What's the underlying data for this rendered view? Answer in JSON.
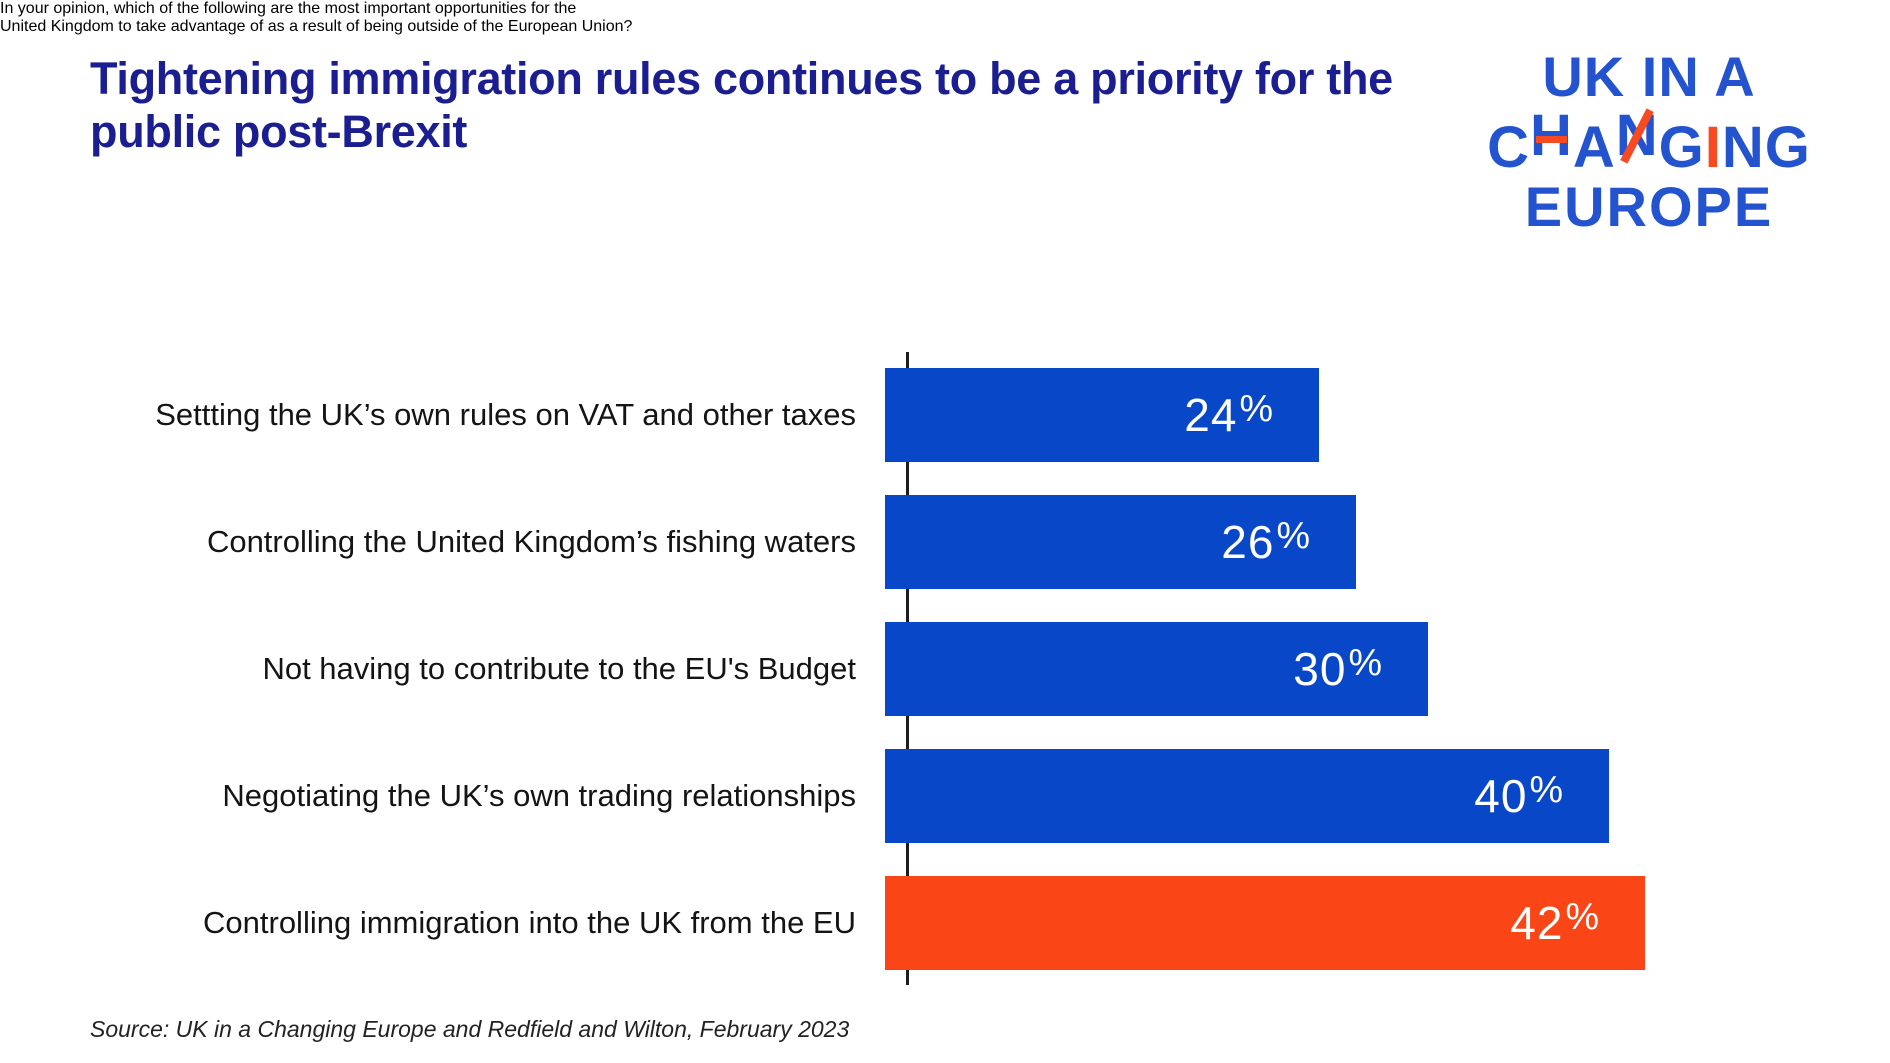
{
  "colors": {
    "title_navy": "#1a1e90",
    "logo_blue": "#2353cf",
    "logo_orange": "#f84a21",
    "axis_black": "#1d1d1d"
  },
  "header": {
    "title_lines": [
      "Tightening immigration rules continues to be a priority for the",
      "public post-Brexit"
    ],
    "subtitle_lines": [
      "In your opinion, which of the following are the most important opportunities for the",
      "United Kingdom to take advantage of as a result of being outside of the European Union?"
    ]
  },
  "logo": {
    "line1": "UK IN A",
    "line2_letters": [
      "C",
      "H",
      "A",
      "N",
      "G",
      "I",
      "N",
      "G"
    ],
    "line3": "EUROPE"
  },
  "chart_data": {
    "type": "bar",
    "orientation": "horizontal",
    "title": "Tightening immigration rules continues to be a priority for the public post-Brexit",
    "question": "In your opinion, which of the following are the most important opportunities for the United Kingdom to take advantage of as a result of being outside of the European Union?",
    "categories": [
      "Settting the UK’s own rules on VAT and other taxes",
      "Controlling the United Kingdom’s fishing waters",
      "Not having to contribute to the EU's Budget",
      "Negotiating the UK’s own trading relationships",
      "Controlling immigration into the UK from the EU"
    ],
    "values": [
      24,
      26,
      30,
      40,
      42
    ],
    "value_labels": [
      "24%",
      "26%",
      "30%",
      "40%",
      "42%"
    ],
    "unit": "%",
    "xlim": [
      0,
      45
    ],
    "grid": false,
    "legend": false,
    "bar_color": "#0847c8",
    "highlight_color": "#fa4616",
    "highlight_index": 4
  },
  "footer": {
    "source": "Source: UK in a Changing Europe and Redfield and Wilton, February 2023"
  }
}
